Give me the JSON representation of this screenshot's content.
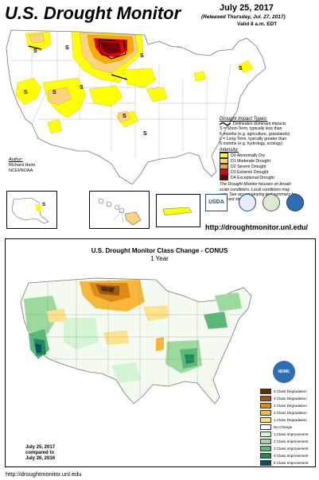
{
  "header": {
    "title": "U.S. Drought Monitor",
    "date": "July 25, 2017",
    "released": "(Released Thursday, Jul. 27, 2017)",
    "valid": "Valid 8 a.m. EDT"
  },
  "impact_legend": {
    "heading": "Drought Impact Types:",
    "delineates": "Delineates dominant impacts",
    "s_line1": "S = Short-Term, typically less than",
    "s_line2": "6 months (e.g. agriculture, grasslands)",
    "l_line1": "L = Long-Term, typically greater than",
    "l_line2": "6 months (e.g. hydrology, ecology)",
    "map_s_label": "S"
  },
  "intensity_legend": {
    "heading": "Intensity:",
    "items": [
      {
        "label": "D0 Abnormally Dry",
        "color": "#ffff00"
      },
      {
        "label": "D1 Moderate Drought",
        "color": "#fcd37f"
      },
      {
        "label": "D2 Severe Drought",
        "color": "#ffaa00"
      },
      {
        "label": "D3 Extreme Drought",
        "color": "#e60000"
      },
      {
        "label": "D4 Exceptional Drought",
        "color": "#730000"
      }
    ],
    "note1": "The Drought Monitor focuses on broad-",
    "note2": "scale conditions. Local conditions may",
    "note3": "vary. See accompanying text summary for",
    "note4": "forecast statements."
  },
  "author": {
    "heading": "Author:",
    "name": "Richard Heim",
    "org": "NCEI/NOAA"
  },
  "logos": {
    "usda": "USDA"
  },
  "url_top": "http://droughtmonitor.unl.edu/",
  "change_map": {
    "title": "U.S. Drought Monitor Class Change - CONUS",
    "subtitle": "1 Year",
    "logo": "NDMC",
    "compare_line1": "July 25, 2017",
    "compare_line2": "compared to",
    "compare_line3": "July 26, 2016",
    "legend": [
      {
        "label": "5 Class Degradation",
        "color": "#5a2e00"
      },
      {
        "label": "4 Class Degradation",
        "color": "#9c5a0f"
      },
      {
        "label": "3 Class Degradation",
        "color": "#e08a16"
      },
      {
        "label": "2 Class Degradation",
        "color": "#f8b63a"
      },
      {
        "label": "1 Class Degradation",
        "color": "#fde38c"
      },
      {
        "label": "No Change",
        "color": "#ffffff"
      },
      {
        "label": "1 Class Improvement",
        "color": "#d3f5d3"
      },
      {
        "label": "2 Class Improvement",
        "color": "#9cd99c"
      },
      {
        "label": "3 Class Improvement",
        "color": "#5cb879"
      },
      {
        "label": "4 Class Improvement",
        "color": "#1f8a5c"
      },
      {
        "label": "5 Class Improvement",
        "color": "#0d4f6b"
      }
    ]
  },
  "url_bottom": "http://droughtmonitor.unl.edu"
}
